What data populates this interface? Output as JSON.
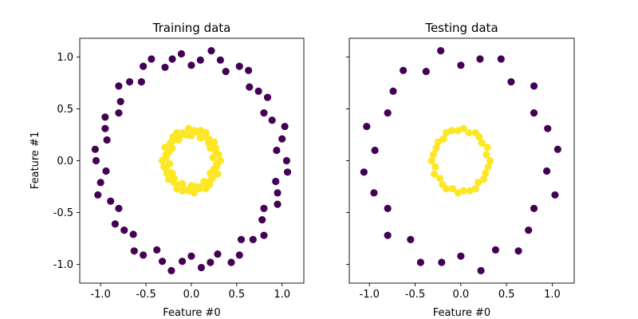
{
  "chart_data": [
    {
      "type": "scatter",
      "title": "Training data",
      "xlabel": "Feature #0",
      "ylabel": "Feature #1",
      "xlim": [
        -1.23,
        1.24
      ],
      "ylim": [
        -1.18,
        1.18
      ],
      "xticks": [
        "-1.0",
        "-0.5",
        "0.0",
        "0.5",
        "1.0"
      ],
      "xtick_values": [
        -1,
        -0.5,
        0,
        0.5,
        1
      ],
      "yticks": [
        "-1.0",
        "-0.5",
        "0.0",
        "0.5",
        "1.0"
      ],
      "ytick_values": [
        -1,
        -0.5,
        0,
        0.5,
        1
      ],
      "show_ytick_labels": true,
      "grid": false,
      "series": [
        {
          "color": "#440154",
          "points": [
            [
              1.05,
              0
            ],
            [
              0.94,
              0.1
            ],
            [
              1.0,
              0.21
            ],
            [
              1.03,
              0.33
            ],
            [
              0.89,
              0.39
            ],
            [
              0.8,
              0.46
            ],
            [
              0.84,
              0.61
            ],
            [
              0.74,
              0.67
            ],
            [
              0.64,
              0.71
            ],
            [
              0.63,
              0.87
            ],
            [
              0.53,
              0.91
            ],
            [
              0.38,
              0.86
            ],
            [
              0.32,
              0.97
            ],
            [
              0.22,
              1.06
            ],
            [
              0.1,
              0.97
            ],
            [
              0,
              0.92
            ],
            [
              -0.11,
              1.03
            ],
            [
              -0.21,
              0.98
            ],
            [
              -0.29,
              0.9
            ],
            [
              -0.44,
              0.98
            ],
            [
              -0.53,
              0.91
            ],
            [
              -0.55,
              0.76
            ],
            [
              -0.68,
              0.76
            ],
            [
              -0.8,
              0.72
            ],
            [
              -0.78,
              0.57
            ],
            [
              -0.8,
              0.46
            ],
            [
              -0.95,
              0.42
            ],
            [
              -0.95,
              0.31
            ],
            [
              -0.93,
              0.2
            ],
            [
              -1.06,
              0.11
            ],
            [
              -1.05,
              0
            ],
            [
              -0.94,
              -0.1
            ],
            [
              -1.0,
              -0.21
            ],
            [
              -1.03,
              -0.33
            ],
            [
              -0.89,
              -0.39
            ],
            [
              -0.8,
              -0.46
            ],
            [
              -0.84,
              -0.61
            ],
            [
              -0.74,
              -0.67
            ],
            [
              -0.64,
              -0.71
            ],
            [
              -0.63,
              -0.87
            ],
            [
              -0.53,
              -0.91
            ],
            [
              -0.38,
              -0.86
            ],
            [
              -0.32,
              -0.97
            ],
            [
              -0.22,
              -1.06
            ],
            [
              -0.1,
              -0.97
            ],
            [
              0,
              -0.92
            ],
            [
              0.11,
              -1.03
            ],
            [
              0.21,
              -0.98
            ],
            [
              0.29,
              -0.9
            ],
            [
              0.44,
              -0.98
            ],
            [
              0.53,
              -0.91
            ],
            [
              0.55,
              -0.76
            ],
            [
              0.68,
              -0.76
            ],
            [
              0.8,
              -0.72
            ],
            [
              0.78,
              -0.57
            ],
            [
              0.8,
              -0.46
            ],
            [
              0.95,
              -0.42
            ],
            [
              0.95,
              -0.31
            ],
            [
              0.93,
              -0.2
            ],
            [
              1.06,
              -0.11
            ]
          ]
        },
        {
          "color": "#fde725",
          "points": [
            [
              0.32,
              0
            ],
            [
              0.24,
              0.03
            ],
            [
              0.3,
              0.06
            ],
            [
              0.27,
              0.09
            ],
            [
              0.27,
              0.12
            ],
            [
              0.21,
              0.12
            ],
            [
              0.25,
              0.18
            ],
            [
              0.19,
              0.17
            ],
            [
              0.19,
              0.21
            ],
            [
              0.16,
              0.23
            ],
            [
              0.16,
              0.27
            ],
            [
              0.1,
              0.22
            ],
            [
              0.1,
              0.29
            ],
            [
              0.06,
              0.28
            ],
            [
              0.03,
              0.29
            ],
            [
              0,
              0.24
            ],
            [
              -0.03,
              0.31
            ],
            [
              -0.05,
              0.25
            ],
            [
              -0.09,
              0.27
            ],
            [
              -0.11,
              0.25
            ],
            [
              -0.16,
              0.27
            ],
            [
              -0.14,
              0.2
            ],
            [
              -0.2,
              0.23
            ],
            [
              -0.21,
              0.19
            ],
            [
              -0.23,
              0.17
            ],
            [
              -0.21,
              0.12
            ],
            [
              -0.29,
              0.13
            ],
            [
              -0.25,
              0.08
            ],
            [
              -0.28,
              0.06
            ],
            [
              -0.28,
              0.03
            ],
            [
              -0.32,
              0
            ],
            [
              -0.24,
              -0.03
            ],
            [
              -0.3,
              -0.06
            ],
            [
              -0.27,
              -0.09
            ],
            [
              -0.27,
              -0.12
            ],
            [
              -0.21,
              -0.12
            ],
            [
              -0.25,
              -0.18
            ],
            [
              -0.19,
              -0.17
            ],
            [
              -0.19,
              -0.21
            ],
            [
              -0.16,
              -0.23
            ],
            [
              -0.16,
              -0.27
            ],
            [
              -0.1,
              -0.22
            ],
            [
              -0.1,
              -0.29
            ],
            [
              -0.06,
              -0.28
            ],
            [
              -0.03,
              -0.29
            ],
            [
              0,
              -0.24
            ],
            [
              0.03,
              -0.31
            ],
            [
              0.05,
              -0.25
            ],
            [
              0.09,
              -0.27
            ],
            [
              0.11,
              -0.25
            ],
            [
              0.16,
              -0.27
            ],
            [
              0.14,
              -0.2
            ],
            [
              0.2,
              -0.23
            ],
            [
              0.21,
              -0.19
            ],
            [
              0.23,
              -0.17
            ],
            [
              0.21,
              -0.12
            ],
            [
              0.29,
              -0.13
            ],
            [
              0.25,
              -0.08
            ],
            [
              0.28,
              -0.06
            ],
            [
              0.28,
              -0.03
            ]
          ]
        }
      ]
    },
    {
      "type": "scatter",
      "title": "Testing data",
      "xlabel": "Feature #0",
      "xlim": [
        -1.22,
        1.24
      ],
      "ylim": [
        -1.18,
        1.18
      ],
      "xticks": [
        "-1.0",
        "-0.5",
        "0.0",
        "0.5",
        "1.0"
      ],
      "xtick_values": [
        -1,
        -0.5,
        0,
        0.5,
        1
      ],
      "ytick_values": [
        -1,
        -0.5,
        0,
        0.5,
        1
      ],
      "show_ytick_labels": false,
      "grid": false,
      "series": [
        {
          "color": "#440154",
          "points": [
            [
              -0.94,
              0.1
            ],
            [
              -1.03,
              0.33
            ],
            [
              -0.8,
              0.46
            ],
            [
              -0.74,
              0.67
            ],
            [
              -0.63,
              0.87
            ],
            [
              -0.38,
              0.86
            ],
            [
              -0.22,
              1.06
            ],
            [
              0,
              0.92
            ],
            [
              0.21,
              0.98
            ],
            [
              0.44,
              0.98
            ],
            [
              0.55,
              0.76
            ],
            [
              0.8,
              0.72
            ],
            [
              0.8,
              0.46
            ],
            [
              0.95,
              0.31
            ],
            [
              1.06,
              0.11
            ],
            [
              0.94,
              -0.1
            ],
            [
              1.03,
              -0.33
            ],
            [
              0.8,
              -0.46
            ],
            [
              0.74,
              -0.67
            ],
            [
              0.63,
              -0.87
            ],
            [
              0.38,
              -0.86
            ],
            [
              0.22,
              -1.06
            ],
            [
              0,
              -0.92
            ],
            [
              -0.21,
              -0.98
            ],
            [
              -0.44,
              -0.98
            ],
            [
              -0.55,
              -0.76
            ],
            [
              -0.8,
              -0.72
            ],
            [
              -0.8,
              -0.46
            ],
            [
              -0.95,
              -0.31
            ],
            [
              -1.06,
              -0.11
            ]
          ]
        },
        {
          "color": "#fde725",
          "points": [
            [
              0.32,
              0
            ],
            [
              0.3,
              -0.06
            ],
            [
              0.27,
              -0.12
            ],
            [
              0.25,
              -0.18
            ],
            [
              0.19,
              -0.21
            ],
            [
              0.16,
              -0.27
            ],
            [
              0.1,
              -0.29
            ],
            [
              0.03,
              -0.29
            ],
            [
              -0.03,
              -0.31
            ],
            [
              -0.09,
              -0.27
            ],
            [
              -0.16,
              -0.27
            ],
            [
              -0.2,
              -0.23
            ],
            [
              -0.23,
              -0.17
            ],
            [
              -0.29,
              -0.13
            ],
            [
              -0.28,
              -0.06
            ],
            [
              -0.32,
              0
            ],
            [
              -0.3,
              0.06
            ],
            [
              -0.27,
              0.12
            ],
            [
              -0.25,
              0.18
            ],
            [
              -0.19,
              0.21
            ],
            [
              -0.16,
              0.27
            ],
            [
              -0.1,
              0.29
            ],
            [
              -0.03,
              0.29
            ],
            [
              0.03,
              0.31
            ],
            [
              0.09,
              0.27
            ],
            [
              0.16,
              0.27
            ],
            [
              0.2,
              0.23
            ],
            [
              0.23,
              0.17
            ],
            [
              0.29,
              0.13
            ],
            [
              0.28,
              0.06
            ]
          ]
        }
      ]
    }
  ]
}
